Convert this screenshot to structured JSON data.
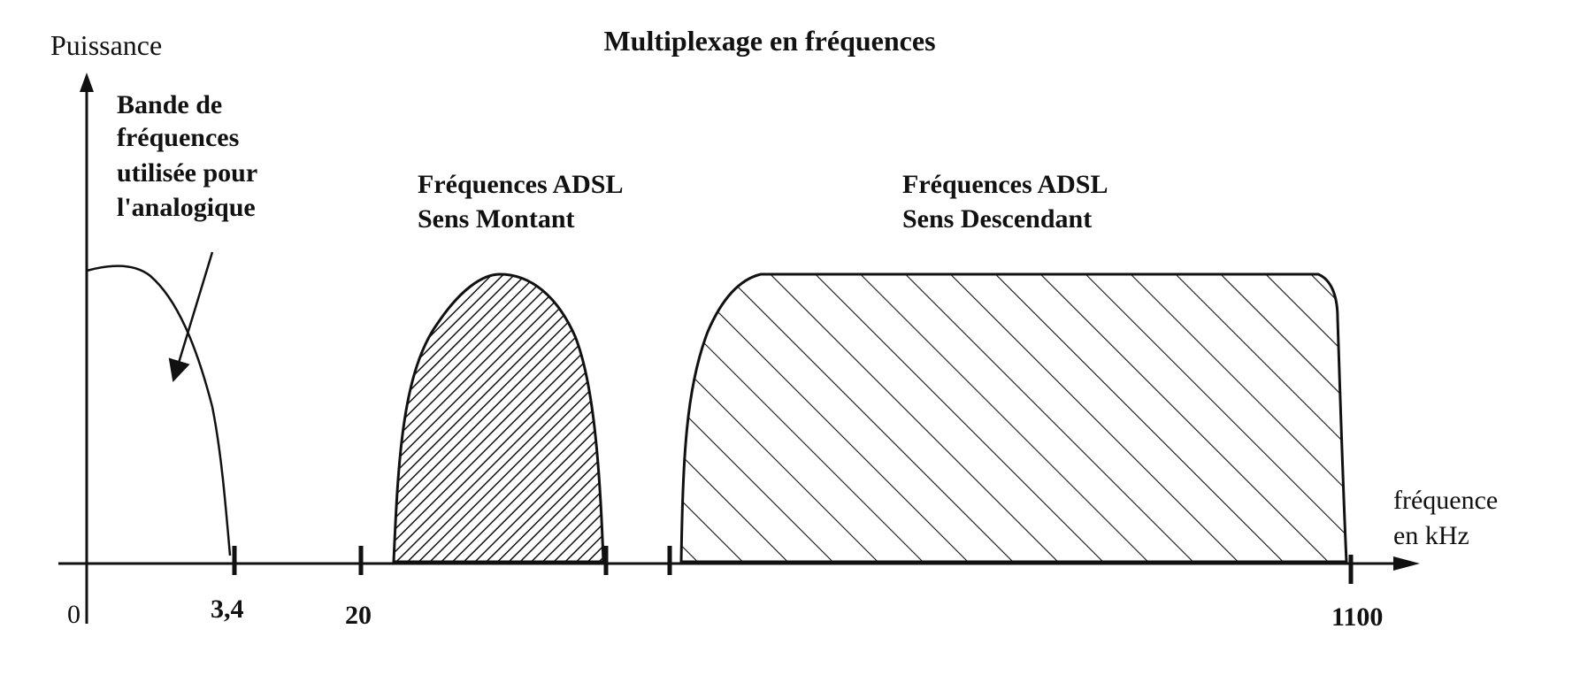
{
  "title": "Multiplexage en fréquences",
  "y_axis_label": "Puissance",
  "x_axis_label": [
    "fréquence",
    "en kHz"
  ],
  "ticks": {
    "zero": "0",
    "t1": "3,4",
    "t2": "20",
    "t3": "1100"
  },
  "annotations": {
    "analog": [
      "Bande de",
      "fréquences",
      "utilisée pour",
      "l'analogique"
    ],
    "upstream": [
      "Fréquences ADSL",
      "Sens Montant"
    ],
    "downstream": [
      "Fréquences ADSL",
      "Sens Descendant"
    ]
  },
  "colors": {
    "ink": "#111111",
    "background": "#ffffff"
  }
}
